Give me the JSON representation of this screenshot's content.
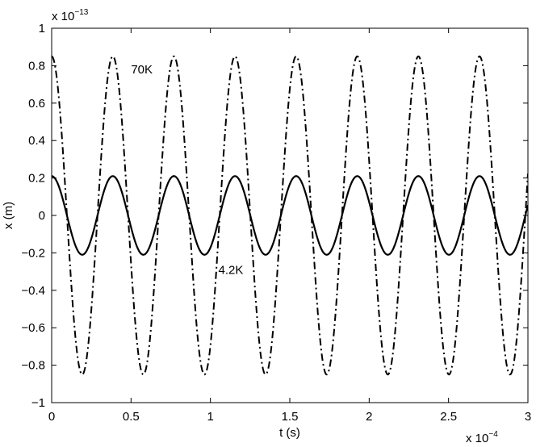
{
  "chart_data": {
    "type": "line",
    "xlabel": "t (s)",
    "ylabel": "x (m)",
    "x_multiplier": {
      "base": "x 10",
      "exponent": "−4"
    },
    "y_multiplier": {
      "base": "x 10",
      "exponent": "−13"
    },
    "xlim": [
      0,
      3
    ],
    "ylim": [
      -1,
      1
    ],
    "xticks": [
      0,
      0.5,
      1,
      1.5,
      2,
      2.5,
      3
    ],
    "xtick_labels": [
      "0",
      "0.5",
      "1",
      "1.5",
      "2",
      "2.5",
      "3"
    ],
    "yticks": [
      -1,
      -0.8,
      -0.6,
      -0.4,
      -0.2,
      0,
      0.2,
      0.4,
      0.6,
      0.8,
      1
    ],
    "ytick_labels": [
      "−1",
      "−0.8",
      "−0.6",
      "−0.4",
      "−0.2",
      "0",
      "0.2",
      "0.4",
      "0.6",
      "0.8",
      "1"
    ],
    "grid": false,
    "series": [
      {
        "label": "70K",
        "amplitude": 0.85,
        "period": 0.385,
        "phase": 0.0,
        "line_style": "dash-dot",
        "color": "#000000"
      },
      {
        "label": "4.2K",
        "amplitude": 0.21,
        "period": 0.385,
        "phase": 0.0,
        "line_style": "solid",
        "color": "#000000"
      }
    ],
    "annotations": [
      {
        "text": "70K",
        "x": 0.5,
        "y": 0.78
      },
      {
        "text": "4.2K",
        "x": 1.05,
        "y": -0.29
      }
    ]
  }
}
